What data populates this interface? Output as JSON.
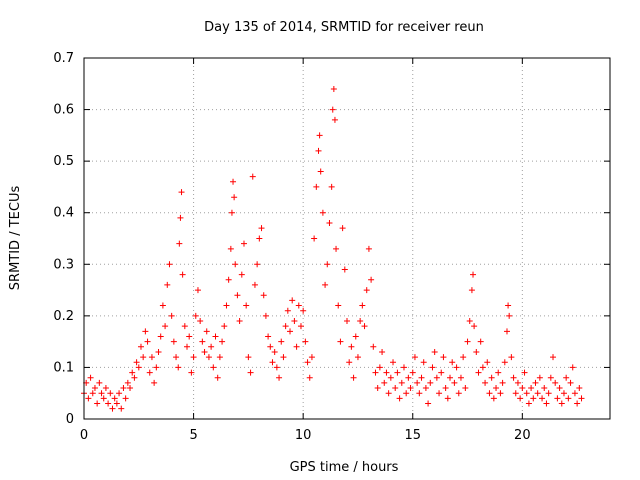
{
  "chart_data": {
    "type": "scatter",
    "title": "Day 135 of 2014, SRMTID for receiver reun",
    "xlabel": "GPS time / hours",
    "ylabel": "SRMTID / TECUs",
    "xlim": [
      0,
      24
    ],
    "ylim": [
      0,
      0.7
    ],
    "xticks": [
      0,
      5,
      10,
      15,
      20
    ],
    "xtick_labels": [
      "0",
      "5",
      "10",
      "15",
      "20"
    ],
    "yticks": [
      0,
      0.1,
      0.2,
      0.3,
      0.4,
      0.5,
      0.6,
      0.7
    ],
    "ytick_labels": [
      "0",
      "0.1",
      "0.2",
      "0.3",
      "0.4",
      "0.5",
      "0.6",
      "0.7"
    ],
    "grid": true,
    "marker": "+",
    "color": "#ff0000",
    "series": [
      {
        "name": "SRMTID",
        "points": [
          [
            0.0,
            0.05
          ],
          [
            0.1,
            0.07
          ],
          [
            0.2,
            0.04
          ],
          [
            0.3,
            0.08
          ],
          [
            0.4,
            0.05
          ],
          [
            0.5,
            0.06
          ],
          [
            0.6,
            0.03
          ],
          [
            0.7,
            0.07
          ],
          [
            0.8,
            0.05
          ],
          [
            0.9,
            0.04
          ],
          [
            1.0,
            0.06
          ],
          [
            1.1,
            0.03
          ],
          [
            1.2,
            0.05
          ],
          [
            1.3,
            0.02
          ],
          [
            1.4,
            0.04
          ],
          [
            1.5,
            0.03
          ],
          [
            1.6,
            0.05
          ],
          [
            1.7,
            0.02
          ],
          [
            1.8,
            0.06
          ],
          [
            1.9,
            0.04
          ],
          [
            2.0,
            0.07
          ],
          [
            2.1,
            0.06
          ],
          [
            2.2,
            0.09
          ],
          [
            2.3,
            0.08
          ],
          [
            2.4,
            0.11
          ],
          [
            2.5,
            0.1
          ],
          [
            2.6,
            0.14
          ],
          [
            2.7,
            0.12
          ],
          [
            2.8,
            0.17
          ],
          [
            2.9,
            0.15
          ],
          [
            3.0,
            0.09
          ],
          [
            3.1,
            0.12
          ],
          [
            3.2,
            0.07
          ],
          [
            3.3,
            0.1
          ],
          [
            3.4,
            0.13
          ],
          [
            3.5,
            0.16
          ],
          [
            3.6,
            0.22
          ],
          [
            3.7,
            0.18
          ],
          [
            3.8,
            0.26
          ],
          [
            3.9,
            0.3
          ],
          [
            4.0,
            0.2
          ],
          [
            4.1,
            0.15
          ],
          [
            4.2,
            0.12
          ],
          [
            4.3,
            0.1
          ],
          [
            4.35,
            0.34
          ],
          [
            4.4,
            0.39
          ],
          [
            4.45,
            0.44
          ],
          [
            4.5,
            0.28
          ],
          [
            4.6,
            0.18
          ],
          [
            4.7,
            0.14
          ],
          [
            4.8,
            0.16
          ],
          [
            4.9,
            0.09
          ],
          [
            5.0,
            0.12
          ],
          [
            5.1,
            0.2
          ],
          [
            5.2,
            0.25
          ],
          [
            5.3,
            0.19
          ],
          [
            5.4,
            0.15
          ],
          [
            5.5,
            0.13
          ],
          [
            5.6,
            0.17
          ],
          [
            5.7,
            0.12
          ],
          [
            5.8,
            0.14
          ],
          [
            5.9,
            0.1
          ],
          [
            6.0,
            0.16
          ],
          [
            6.1,
            0.08
          ],
          [
            6.2,
            0.12
          ],
          [
            6.3,
            0.15
          ],
          [
            6.4,
            0.18
          ],
          [
            6.5,
            0.22
          ],
          [
            6.6,
            0.27
          ],
          [
            6.7,
            0.33
          ],
          [
            6.75,
            0.4
          ],
          [
            6.8,
            0.46
          ],
          [
            6.85,
            0.43
          ],
          [
            6.9,
            0.3
          ],
          [
            7.0,
            0.24
          ],
          [
            7.1,
            0.19
          ],
          [
            7.2,
            0.28
          ],
          [
            7.3,
            0.34
          ],
          [
            7.4,
            0.22
          ],
          [
            7.5,
            0.12
          ],
          [
            7.6,
            0.09
          ],
          [
            7.7,
            0.47
          ],
          [
            7.8,
            0.26
          ],
          [
            7.9,
            0.3
          ],
          [
            8.0,
            0.35
          ],
          [
            8.1,
            0.37
          ],
          [
            8.2,
            0.24
          ],
          [
            8.3,
            0.2
          ],
          [
            8.4,
            0.16
          ],
          [
            8.5,
            0.14
          ],
          [
            8.6,
            0.11
          ],
          [
            8.7,
            0.13
          ],
          [
            8.8,
            0.1
          ],
          [
            8.9,
            0.08
          ],
          [
            9.0,
            0.15
          ],
          [
            9.1,
            0.12
          ],
          [
            9.2,
            0.18
          ],
          [
            9.3,
            0.21
          ],
          [
            9.4,
            0.17
          ],
          [
            9.5,
            0.23
          ],
          [
            9.6,
            0.19
          ],
          [
            9.7,
            0.14
          ],
          [
            9.8,
            0.22
          ],
          [
            9.9,
            0.18
          ],
          [
            10.0,
            0.21
          ],
          [
            10.1,
            0.15
          ],
          [
            10.2,
            0.11
          ],
          [
            10.3,
            0.08
          ],
          [
            10.4,
            0.12
          ],
          [
            10.5,
            0.35
          ],
          [
            10.6,
            0.45
          ],
          [
            10.7,
            0.52
          ],
          [
            10.75,
            0.55
          ],
          [
            10.8,
            0.48
          ],
          [
            10.9,
            0.4
          ],
          [
            11.0,
            0.26
          ],
          [
            11.1,
            0.3
          ],
          [
            11.2,
            0.38
          ],
          [
            11.3,
            0.45
          ],
          [
            11.35,
            0.6
          ],
          [
            11.4,
            0.64
          ],
          [
            11.45,
            0.58
          ],
          [
            11.5,
            0.33
          ],
          [
            11.6,
            0.22
          ],
          [
            11.7,
            0.15
          ],
          [
            11.8,
            0.37
          ],
          [
            11.9,
            0.29
          ],
          [
            12.0,
            0.19
          ],
          [
            12.1,
            0.11
          ],
          [
            12.2,
            0.14
          ],
          [
            12.3,
            0.08
          ],
          [
            12.4,
            0.16
          ],
          [
            12.5,
            0.12
          ],
          [
            12.6,
            0.19
          ],
          [
            12.7,
            0.22
          ],
          [
            12.8,
            0.18
          ],
          [
            12.9,
            0.25
          ],
          [
            13.0,
            0.33
          ],
          [
            13.1,
            0.27
          ],
          [
            13.2,
            0.14
          ],
          [
            13.3,
            0.09
          ],
          [
            13.4,
            0.06
          ],
          [
            13.5,
            0.1
          ],
          [
            13.6,
            0.13
          ],
          [
            13.7,
            0.07
          ],
          [
            13.8,
            0.09
          ],
          [
            13.9,
            0.05
          ],
          [
            14.0,
            0.08
          ],
          [
            14.1,
            0.11
          ],
          [
            14.2,
            0.06
          ],
          [
            14.3,
            0.09
          ],
          [
            14.4,
            0.04
          ],
          [
            14.5,
            0.07
          ],
          [
            14.6,
            0.1
          ],
          [
            14.7,
            0.05
          ],
          [
            14.8,
            0.08
          ],
          [
            14.9,
            0.06
          ],
          [
            15.0,
            0.09
          ],
          [
            15.1,
            0.12
          ],
          [
            15.2,
            0.07
          ],
          [
            15.3,
            0.05
          ],
          [
            15.4,
            0.08
          ],
          [
            15.5,
            0.11
          ],
          [
            15.6,
            0.06
          ],
          [
            15.7,
            0.03
          ],
          [
            15.8,
            0.07
          ],
          [
            15.9,
            0.1
          ],
          [
            16.0,
            0.13
          ],
          [
            16.1,
            0.08
          ],
          [
            16.2,
            0.05
          ],
          [
            16.3,
            0.09
          ],
          [
            16.4,
            0.12
          ],
          [
            16.5,
            0.06
          ],
          [
            16.6,
            0.04
          ],
          [
            16.7,
            0.08
          ],
          [
            16.8,
            0.11
          ],
          [
            16.9,
            0.07
          ],
          [
            17.0,
            0.1
          ],
          [
            17.1,
            0.05
          ],
          [
            17.2,
            0.08
          ],
          [
            17.3,
            0.12
          ],
          [
            17.4,
            0.06
          ],
          [
            17.5,
            0.15
          ],
          [
            17.6,
            0.19
          ],
          [
            17.7,
            0.25
          ],
          [
            17.75,
            0.28
          ],
          [
            17.8,
            0.18
          ],
          [
            17.9,
            0.13
          ],
          [
            18.0,
            0.09
          ],
          [
            18.1,
            0.15
          ],
          [
            18.2,
            0.1
          ],
          [
            18.3,
            0.07
          ],
          [
            18.4,
            0.11
          ],
          [
            18.5,
            0.05
          ],
          [
            18.6,
            0.08
          ],
          [
            18.7,
            0.04
          ],
          [
            18.8,
            0.06
          ],
          [
            18.9,
            0.09
          ],
          [
            19.0,
            0.05
          ],
          [
            19.1,
            0.07
          ],
          [
            19.2,
            0.11
          ],
          [
            19.3,
            0.17
          ],
          [
            19.35,
            0.22
          ],
          [
            19.4,
            0.2
          ],
          [
            19.5,
            0.12
          ],
          [
            19.6,
            0.08
          ],
          [
            19.7,
            0.05
          ],
          [
            19.8,
            0.07
          ],
          [
            19.9,
            0.04
          ],
          [
            20.0,
            0.06
          ],
          [
            20.1,
            0.09
          ],
          [
            20.2,
            0.05
          ],
          [
            20.3,
            0.03
          ],
          [
            20.4,
            0.06
          ],
          [
            20.5,
            0.04
          ],
          [
            20.6,
            0.07
          ],
          [
            20.7,
            0.05
          ],
          [
            20.8,
            0.08
          ],
          [
            20.9,
            0.04
          ],
          [
            21.0,
            0.06
          ],
          [
            21.1,
            0.03
          ],
          [
            21.2,
            0.05
          ],
          [
            21.3,
            0.08
          ],
          [
            21.4,
            0.12
          ],
          [
            21.5,
            0.07
          ],
          [
            21.6,
            0.04
          ],
          [
            21.7,
            0.06
          ],
          [
            21.8,
            0.03
          ],
          [
            21.9,
            0.05
          ],
          [
            22.0,
            0.08
          ],
          [
            22.1,
            0.04
          ],
          [
            22.2,
            0.07
          ],
          [
            22.3,
            0.1
          ],
          [
            22.4,
            0.05
          ],
          [
            22.5,
            0.03
          ],
          [
            22.6,
            0.06
          ],
          [
            22.7,
            0.04
          ]
        ]
      }
    ]
  }
}
